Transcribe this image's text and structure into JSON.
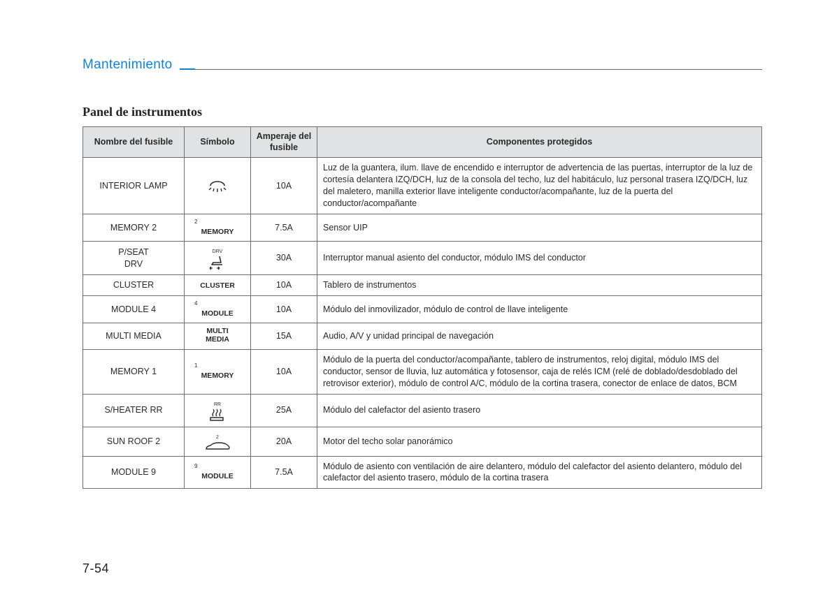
{
  "header": {
    "section_title": "Mantenimiento",
    "subsection_title": "Panel de instrumentos",
    "page_number": "7-54"
  },
  "table": {
    "columns": {
      "name": "Nombre del fusible",
      "symbol": "Símbolo",
      "amp": "Amperaje del fusible",
      "components": "Componentes protegidos"
    },
    "rows": [
      {
        "name": "INTERIOR LAMP",
        "symbol_type": "lamp-icon",
        "amp": "10A",
        "components": "Luz de la guantera, ilum. llave de encendido e interruptor de advertencia de las puertas, interruptor de la luz de cortesía delantera IZQ/DCH, luz de la consola del techo, luz del habitáculo, luz personal trasera IZQ/DCH, luz del maletero, manilla exterior llave inteligente conductor/acompañante, luz de la puerta del conductor/acompañante"
      },
      {
        "name": "MEMORY 2",
        "symbol_type": "text",
        "symbol_sup": "2",
        "symbol_text": "MEMORY",
        "amp": "7.5A",
        "components": "Sensor UIP"
      },
      {
        "name": "P/SEAT\nDRV",
        "symbol_type": "seat-icon",
        "symbol_sup": "DRV",
        "amp": "30A",
        "components": "Interruptor manual asiento del conductor, módulo IMS del conductor"
      },
      {
        "name": "CLUSTER",
        "symbol_type": "text",
        "symbol_text": "CLUSTER",
        "amp": "10A",
        "components": "Tablero de instrumentos"
      },
      {
        "name": "MODULE 4",
        "symbol_type": "text",
        "symbol_sup": "4",
        "symbol_text": "MODULE",
        "amp": "10A",
        "components": "Módulo del inmovilizador, módulo de control de llave inteligente"
      },
      {
        "name": "MULTI MEDIA",
        "symbol_type": "text",
        "symbol_text": "MULTI\nMEDIA",
        "amp": "15A",
        "components": "Audio, A/V y unidad principal de navegación"
      },
      {
        "name": "MEMORY 1",
        "symbol_type": "text",
        "symbol_sup": "1",
        "symbol_text": "MEMORY",
        "amp": "10A",
        "components": "Módulo de la puerta del conductor/acompañante, tablero de instrumentos, reloj digital, módulo IMS del conductor, sensor de lluvia, luz automática y fotosensor, caja de relés ICM (relé de doblado/desdoblado del retrovisor exterior), módulo de control A/C, módulo de la cortina trasera, conector de enlace de datos, BCM"
      },
      {
        "name": "S/HEATER RR",
        "symbol_type": "heater-icon",
        "symbol_sup": "RR",
        "amp": "25A",
        "components": "Módulo del calefactor del asiento trasero"
      },
      {
        "name": "SUN ROOF 2",
        "symbol_type": "car-icon",
        "symbol_sup": "2",
        "amp": "20A",
        "components": "Motor del techo solar panorámico"
      },
      {
        "name": "MODULE 9",
        "symbol_type": "text",
        "symbol_sup": "9",
        "symbol_text": "MODULE",
        "amp": "7.5A",
        "components": "Módulo de asiento con ventilación de aire delantero, módulo del calefactor del asiento delantero, módulo del calefactor del asiento trasero, módulo de la cortina trasera"
      }
    ]
  },
  "colors": {
    "accent": "#1b7fc4",
    "header_bg": "#e1e2e3",
    "border": "#6e6e6e",
    "text": "#2a2a2a"
  }
}
